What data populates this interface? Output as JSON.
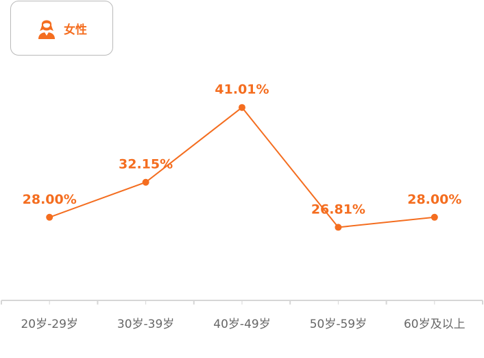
{
  "legend": {
    "label": "女性",
    "icon": "female-person-icon"
  },
  "colors": {
    "accent": "#f46d1f",
    "axis": "#d6d6d6",
    "tick_text": "#666666",
    "badge_border": "#b9b9b9"
  },
  "chart_data": {
    "type": "line",
    "categories": [
      "20岁-29岁",
      "30岁-39岁",
      "40岁-49岁",
      "50岁-59岁",
      "60岁及以上"
    ],
    "series": [
      {
        "name": "女性",
        "values": [
          28.0,
          32.15,
          41.01,
          26.81,
          28.0
        ],
        "labels": [
          "28.00%",
          "32.15%",
          "41.01%",
          "26.81%",
          "28.00%"
        ]
      }
    ],
    "title": "",
    "xlabel": "",
    "ylabel": "",
    "ylim": [
      18.15,
      43.18
    ],
    "grid": false,
    "legend_position": "top-left"
  }
}
